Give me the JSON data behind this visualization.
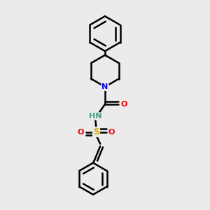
{
  "bg_color": "#ebebeb",
  "atom_colors": {
    "C": "#000000",
    "N": "#0000ee",
    "O": "#ee0000",
    "S": "#ddaa00",
    "H": "#4a9a8a"
  },
  "bond_color": "#000000",
  "line_width": 1.8,
  "figsize": [
    3.0,
    3.0
  ],
  "dpi": 100
}
